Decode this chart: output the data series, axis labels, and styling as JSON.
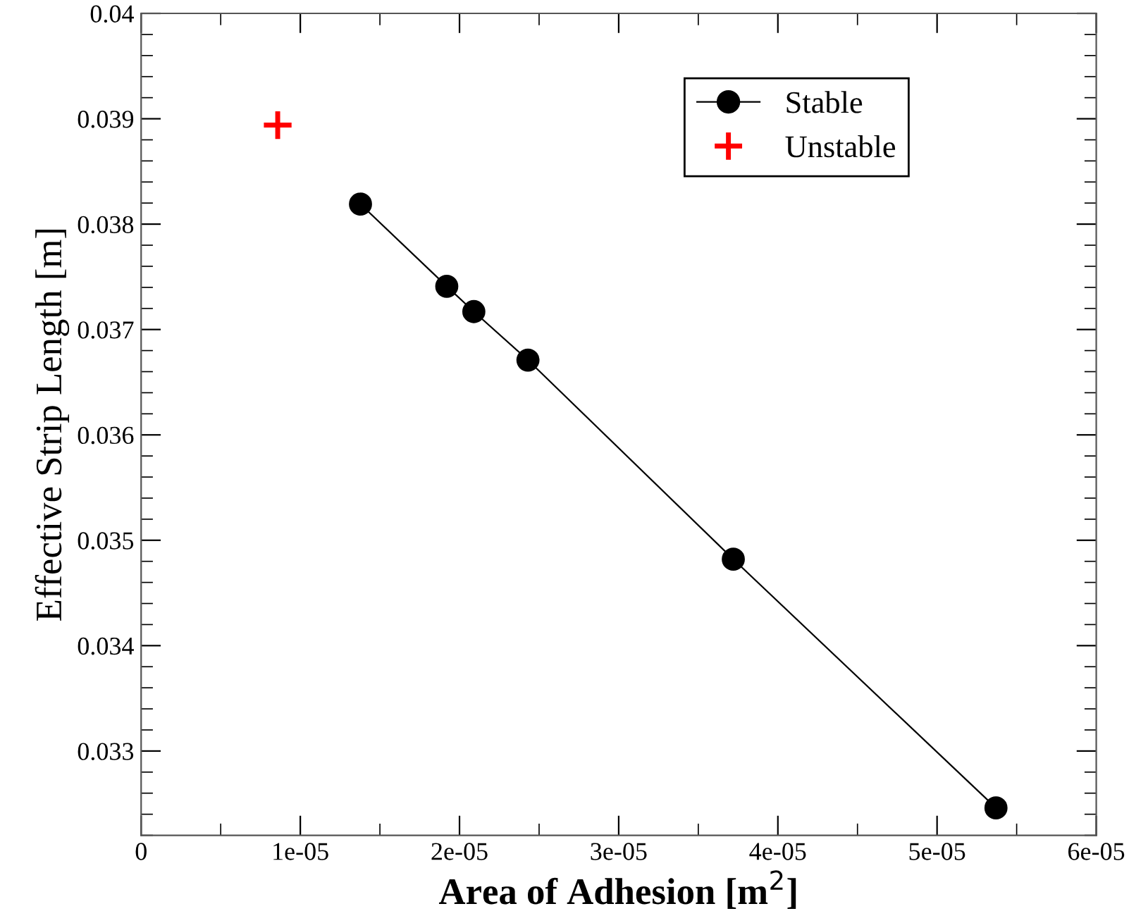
{
  "chart_data": {
    "type": "line",
    "xlabel": "Area of Adhesion [m$^{2}$]",
    "ylabel": "Effective Strip Length [m]",
    "xlim": [
      0,
      6e-05
    ],
    "xticks": [
      {
        "value": 0,
        "label": "0"
      },
      {
        "value": 1e-05,
        "label": "1e-05"
      },
      {
        "value": 2e-05,
        "label": "2e-05"
      },
      {
        "value": 3e-05,
        "label": "3e-05"
      },
      {
        "value": 4e-05,
        "label": "4e-05"
      },
      {
        "value": 5e-05,
        "label": "5e-05"
      },
      {
        "value": 6e-05,
        "label": "6e-05"
      }
    ],
    "ylim": [
      0.0322,
      0.04
    ],
    "yticks": [
      0.033,
      0.034,
      0.035,
      0.036,
      0.037,
      0.038,
      0.039,
      0.04
    ],
    "grid": false,
    "legend": "top right",
    "series": [
      {
        "name": "Stable",
        "color": "#000000",
        "marker": "circle",
        "line_style": "solid",
        "x": [
          1.378e-05,
          1.92e-05,
          2.09e-05,
          2.43e-05,
          3.72e-05,
          5.37e-05
        ],
        "values": [
          0.03819,
          0.03741,
          0.03717,
          0.03671,
          0.03482,
          0.03246
        ]
      },
      {
        "name": "Unstable",
        "type": "scatter",
        "color": "#ff0000",
        "marker": "cross",
        "x": [
          8.58e-06
        ],
        "values": [
          0.03894
        ]
      }
    ]
  }
}
